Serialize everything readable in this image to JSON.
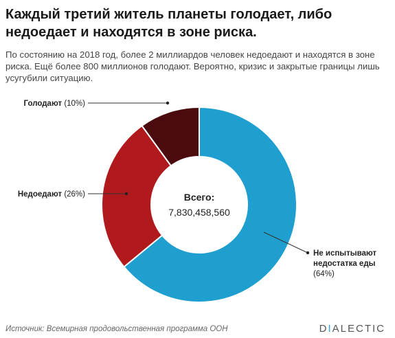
{
  "title": "Каждый третий житель планеты голодает, либо недоедает и находятся в зоне риска.",
  "subtitle": "По состоянию на 2018 год, более 2 миллиардов человек недоедают и находятся в зоне риска. Ещё более 800 миллионов голодают. Вероятно, кризис и закрытые границы лишь усугубили ситуацию.",
  "chart_data": {
    "type": "pie",
    "variant": "donut",
    "center_label": "Всего:",
    "center_value": "7,830,458,560",
    "slices": [
      {
        "label": "Голодают",
        "pct_text": "(10%)",
        "value": 10,
        "color": "#4a0a0e"
      },
      {
        "label": "Недоедают",
        "pct_text": "(26%)",
        "value": 26,
        "color": "#b01a1c"
      },
      {
        "label": "Не испытывают недостатка еды",
        "pct_text": "(64%)",
        "value": 64,
        "color": "#1f9fd0"
      }
    ]
  },
  "footer": {
    "source": "Источник: Всемирная продовольственная программа ООН",
    "brand_left": "D",
    "brand_dot": "I",
    "brand_right": "ALECTIC"
  }
}
